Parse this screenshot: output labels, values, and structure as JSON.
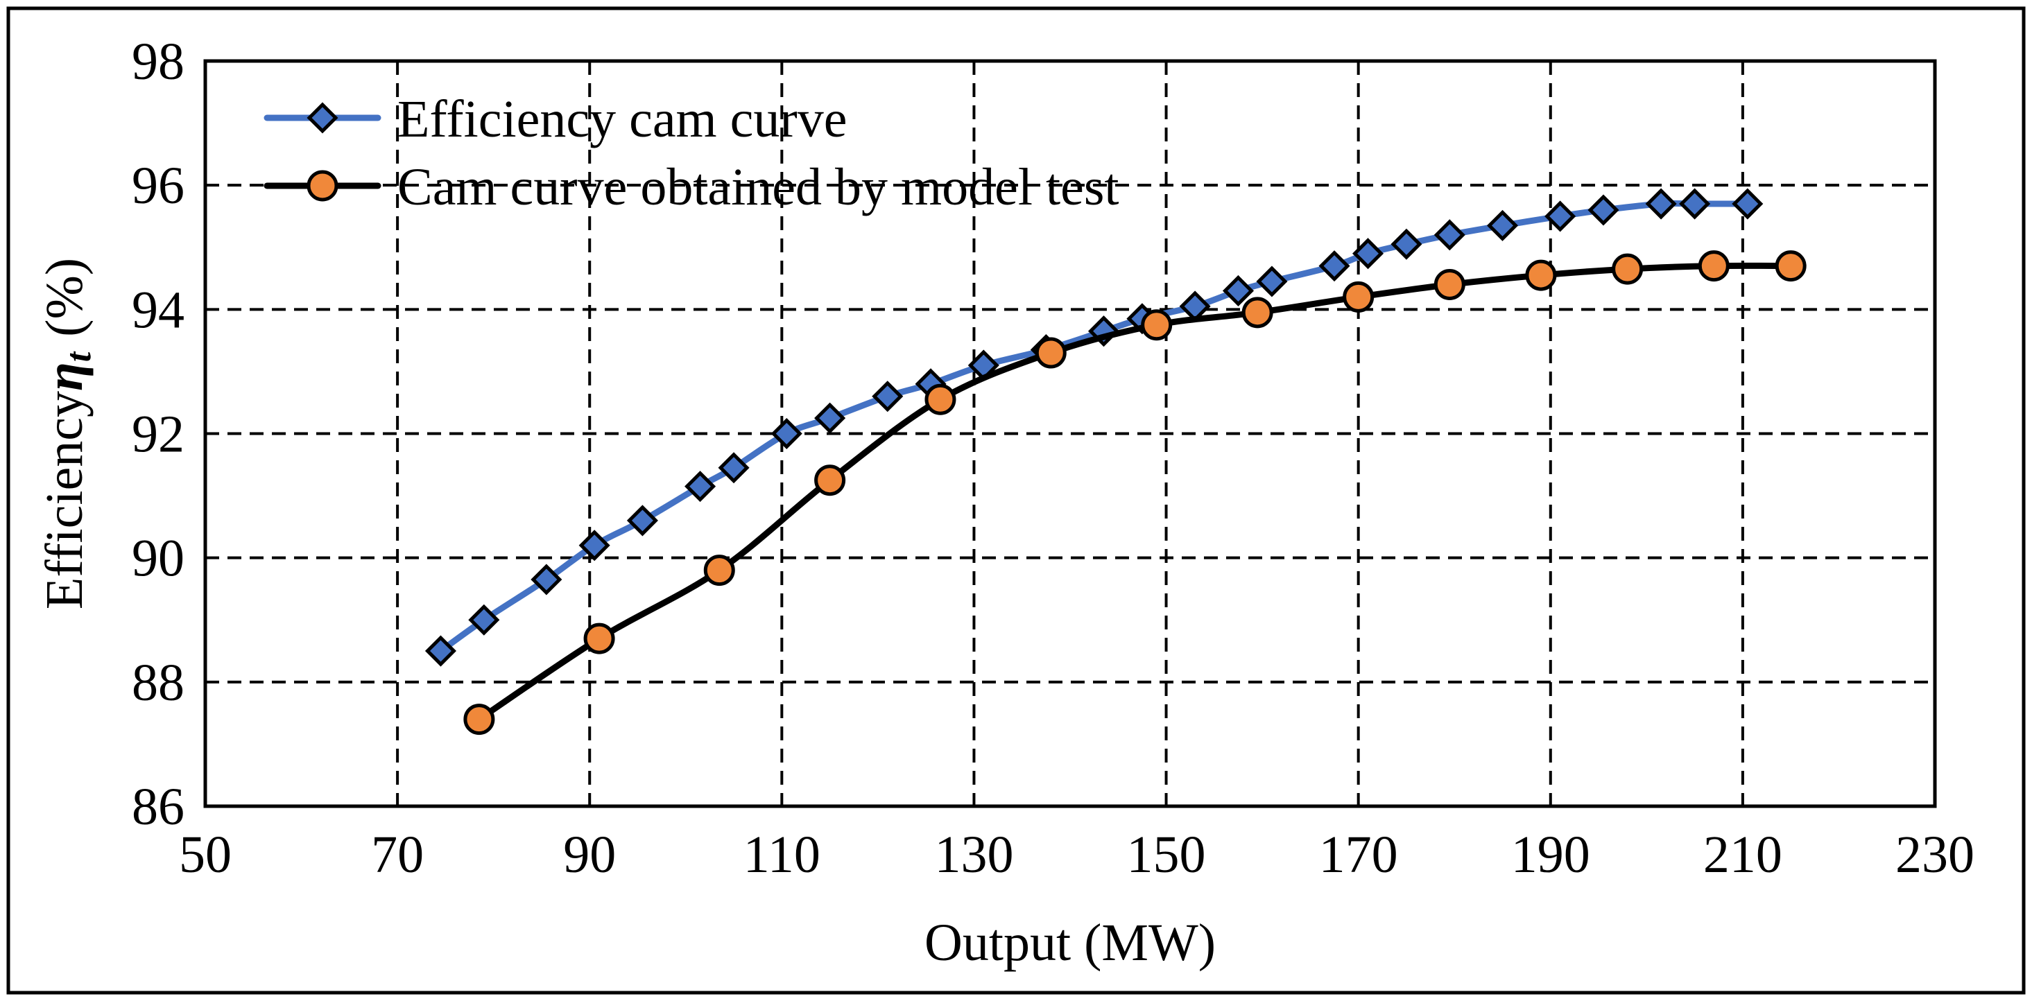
{
  "chart_data": {
    "type": "line",
    "title": "",
    "xlabel": "Output (MW)",
    "ylabel": "Efficiency",
    "ylabel_symbol": "η",
    "ylabel_subscript": "t",
    "ylabel_unit": "(%)",
    "xlim": [
      50,
      230
    ],
    "ylim": [
      86,
      98
    ],
    "x_ticks": [
      50,
      70,
      90,
      110,
      130,
      150,
      170,
      190,
      210,
      230
    ],
    "y_ticks": [
      86,
      88,
      90,
      92,
      94,
      96,
      98
    ],
    "x_tick_labels": [
      "50",
      "70",
      "90",
      "110",
      "130",
      "150",
      "170",
      "190",
      "210",
      "230"
    ],
    "y_tick_labels": [
      "86",
      "88",
      "90",
      "92",
      "94",
      "96",
      "98"
    ],
    "grid": true,
    "legend_position": "top-left",
    "series": [
      {
        "name": "Efficiency cam curve",
        "color": "#4472C4",
        "marker": "diamond",
        "marker_fill": "#4472C4",
        "points": [
          [
            74.5,
            88.5
          ],
          [
            79,
            89.0
          ],
          [
            85.5,
            89.65
          ],
          [
            90.5,
            90.2
          ],
          [
            95.5,
            90.6
          ],
          [
            101.5,
            91.15
          ],
          [
            105,
            91.45
          ],
          [
            110.5,
            92.0
          ],
          [
            115,
            92.25
          ],
          [
            121,
            92.6
          ],
          [
            125.5,
            92.8
          ],
          [
            131,
            93.1
          ],
          [
            137.5,
            93.35
          ],
          [
            143.5,
            93.65
          ],
          [
            147.5,
            93.85
          ],
          [
            153,
            94.05
          ],
          [
            157.5,
            94.3
          ],
          [
            161,
            94.45
          ],
          [
            167.5,
            94.7
          ],
          [
            171,
            94.9
          ],
          [
            175,
            95.05
          ],
          [
            179.5,
            95.2
          ],
          [
            185,
            95.35
          ],
          [
            191,
            95.5
          ],
          [
            195.5,
            95.6
          ],
          [
            201.5,
            95.7
          ],
          [
            205,
            95.7
          ],
          [
            210.5,
            95.7
          ]
        ]
      },
      {
        "name": "Cam curve obtained by model test",
        "color": "#000000",
        "marker": "circle",
        "marker_fill": "#F0883A",
        "points": [
          [
            78.5,
            87.4
          ],
          [
            91,
            88.7
          ],
          [
            103.5,
            89.8
          ],
          [
            115,
            91.25
          ],
          [
            126.5,
            92.55
          ],
          [
            138,
            93.3
          ],
          [
            149,
            93.75
          ],
          [
            159.5,
            93.95
          ],
          [
            170,
            94.2
          ],
          [
            179.5,
            94.4
          ],
          [
            189,
            94.55
          ],
          [
            198,
            94.65
          ],
          [
            207,
            94.7
          ],
          [
            215,
            94.7
          ]
        ]
      }
    ]
  }
}
